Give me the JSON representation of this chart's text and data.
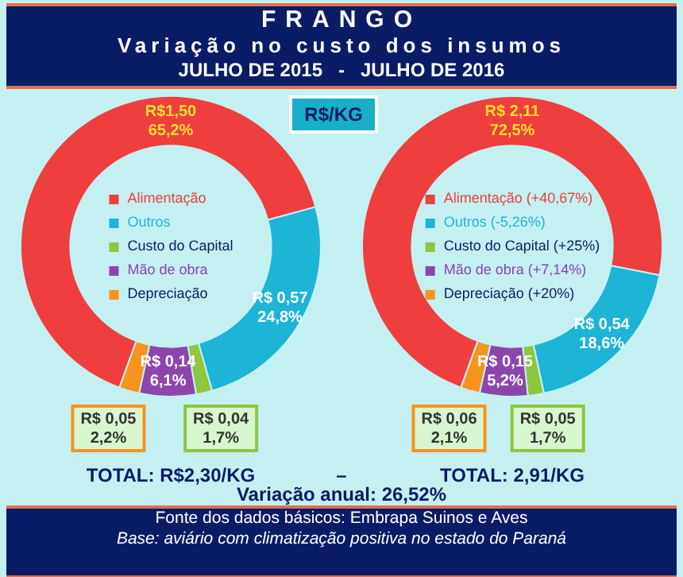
{
  "chart_data": [
    {
      "type": "other",
      "title": "FRANGO",
      "subtitle": "Variação no custo dos insumos",
      "annotations": [
        "JULHO DE 2015   -   JULHO DE 2016",
        "R$/KG",
        "–",
        "Variação anual: 26,52%",
        "Fonte dos dados básicos: Embrapa Suinos e Aves",
        "Base: aviário com climatização positiva no estado do Paraná"
      ]
    },
    {
      "type": "donut",
      "categories": [
        "Alimentação",
        "Outros",
        "Custo do Capital",
        "Mão de obra",
        "Depreciação"
      ],
      "values": [
        1.5,
        0.57,
        0.04,
        0.14,
        0.05
      ],
      "colors": [
        "#ef3e3e",
        "#1db4d6",
        "#8dc63f",
        "#8e44ad",
        "#f7941d"
      ],
      "value_labels": [
        "R$1,50\n65,2%",
        "R$ 0,57\n24,8%",
        "R$ 0,04\n1,7%",
        "R$ 0,14\n6,1%",
        "R$ 0,05\n2,2%"
      ],
      "legend": "center",
      "annotations": [
        "TOTAL: R$2,30/KG"
      ]
    },
    {
      "type": "donut",
      "categories": [
        "Alimentação (+40,67%)",
        "Outros (-5,26%)",
        "Custo do Capital (+25%)",
        "Mão de obra (+7,14%)",
        "Depreciação (+20%)"
      ],
      "values": [
        2.11,
        0.54,
        0.05,
        0.15,
        0.06
      ],
      "colors": [
        "#ef3e3e",
        "#1db4d6",
        "#8dc63f",
        "#8e44ad",
        "#f7941d"
      ],
      "value_labels": [
        "R$ 2,11\n72,5%",
        "R$ 0,54\n18,6%",
        "R$ 0,05\n1,7%",
        "R$ 0,15\n5,2%",
        "R$ 0,06\n2,1%"
      ],
      "legend": "center",
      "annotations": [
        "TOTAL: 2,91/KG"
      ]
    }
  ]
}
